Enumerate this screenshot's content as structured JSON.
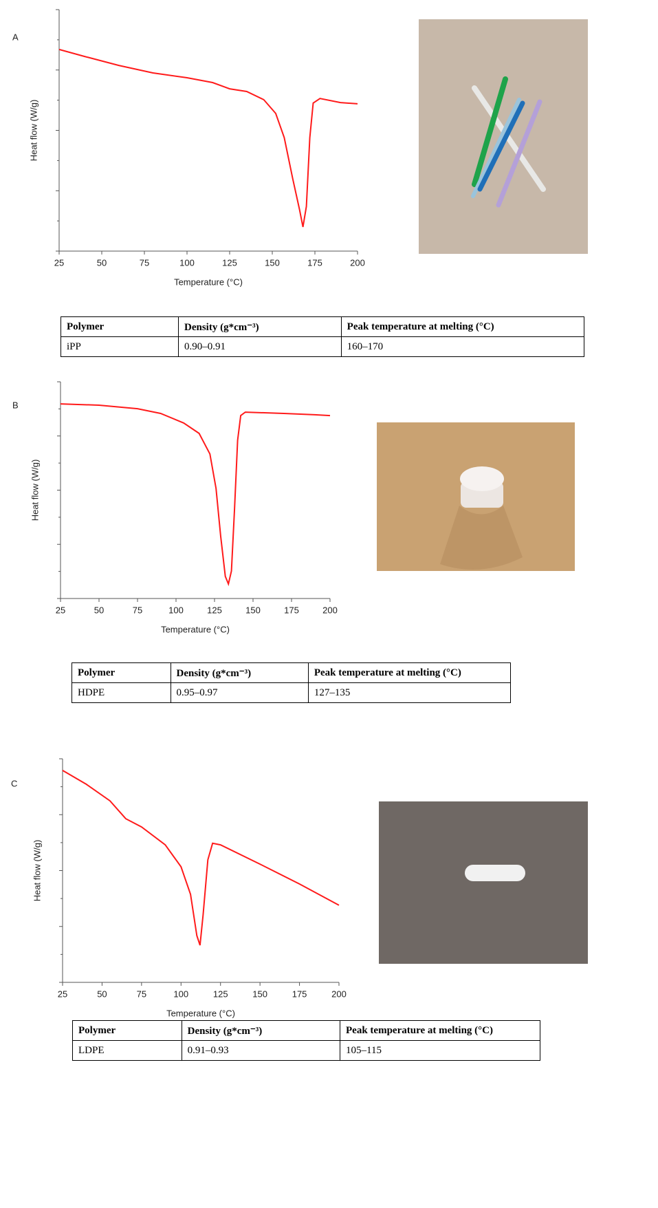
{
  "panel_labels": [
    "A",
    "B",
    "C"
  ],
  "chart_data": [
    {
      "type": "line",
      "xlabel": "Temperature (°C)",
      "ylabel": "Heat flow (W/g)",
      "x": [
        25,
        40,
        60,
        80,
        100,
        115,
        125,
        135,
        145,
        152,
        157,
        162,
        166,
        168,
        170,
        172,
        174,
        178,
        190,
        200
      ],
      "series": [
        {
          "color": "#ff1a1a",
          "values": [
            8.35,
            8.06,
            7.69,
            7.38,
            7.18,
            6.98,
            6.72,
            6.61,
            6.27,
            5.7,
            4.7,
            2.99,
            1.71,
            1.0,
            1.85,
            4.7,
            6.13,
            6.32,
            6.15,
            6.1
          ]
        }
      ],
      "xlim": [
        25,
        200
      ],
      "ylim": [
        0,
        10
      ],
      "xticks": [
        25,
        50,
        75,
        100,
        125,
        150,
        175,
        200
      ]
    },
    {
      "type": "line",
      "xlabel": "Temperature (°C)",
      "ylabel": "Heat flow (W/g)",
      "x": [
        25,
        50,
        75,
        90,
        105,
        115,
        122,
        126,
        129,
        132,
        134,
        136,
        138,
        140,
        142,
        145,
        170,
        190,
        200
      ],
      "series": [
        {
          "color": "#ff1a1a",
          "values": [
            8.98,
            8.92,
            8.76,
            8.54,
            8.1,
            7.62,
            6.67,
            5.08,
            2.86,
            1.02,
            0.67,
            1.27,
            4.13,
            7.3,
            8.44,
            8.6,
            8.54,
            8.48,
            8.44
          ]
        }
      ],
      "xlim": [
        25,
        200
      ],
      "ylim": [
        0,
        10
      ],
      "xticks": [
        25,
        50,
        75,
        100,
        125,
        150,
        175,
        200
      ]
    },
    {
      "type": "line",
      "xlabel": "Temperature (°C)",
      "ylabel": "Heat flow (W/g)",
      "x": [
        25,
        40,
        55,
        65,
        75,
        90,
        100,
        106,
        110,
        112,
        114,
        117,
        120,
        125,
        150,
        175,
        200
      ],
      "series": [
        {
          "color": "#ff1a1a",
          "values": [
            9.48,
            8.86,
            8.12,
            7.32,
            6.95,
            6.15,
            5.17,
            3.94,
            2.09,
            1.66,
            3.02,
            5.48,
            6.22,
            6.15,
            5.29,
            4.4,
            3.45
          ]
        }
      ],
      "xlim": [
        25,
        200
      ],
      "ylim": [
        0,
        10
      ],
      "xticks": [
        25,
        50,
        75,
        100,
        125,
        150,
        175,
        200
      ]
    }
  ],
  "tables": [
    {
      "columns": [
        "Polymer",
        "Density (g*cm⁻³)",
        "Peak temperature at melting (°C)"
      ],
      "rows": [
        [
          "iPP",
          "0.90–0.91",
          "160–170"
        ]
      ]
    },
    {
      "columns": [
        "Polymer",
        "Density (g*cm⁻³)",
        "Peak temperature at melting (°C)"
      ],
      "rows": [
        [
          "HDPE",
          "0.95–0.97",
          "127–135"
        ]
      ]
    },
    {
      "columns": [
        "Polymer",
        "Density (g*cm⁻³)",
        "Peak temperature at melting (°C)"
      ],
      "rows": [
        [
          "LDPE",
          "0.91–0.93",
          "105–115"
        ]
      ]
    }
  ]
}
